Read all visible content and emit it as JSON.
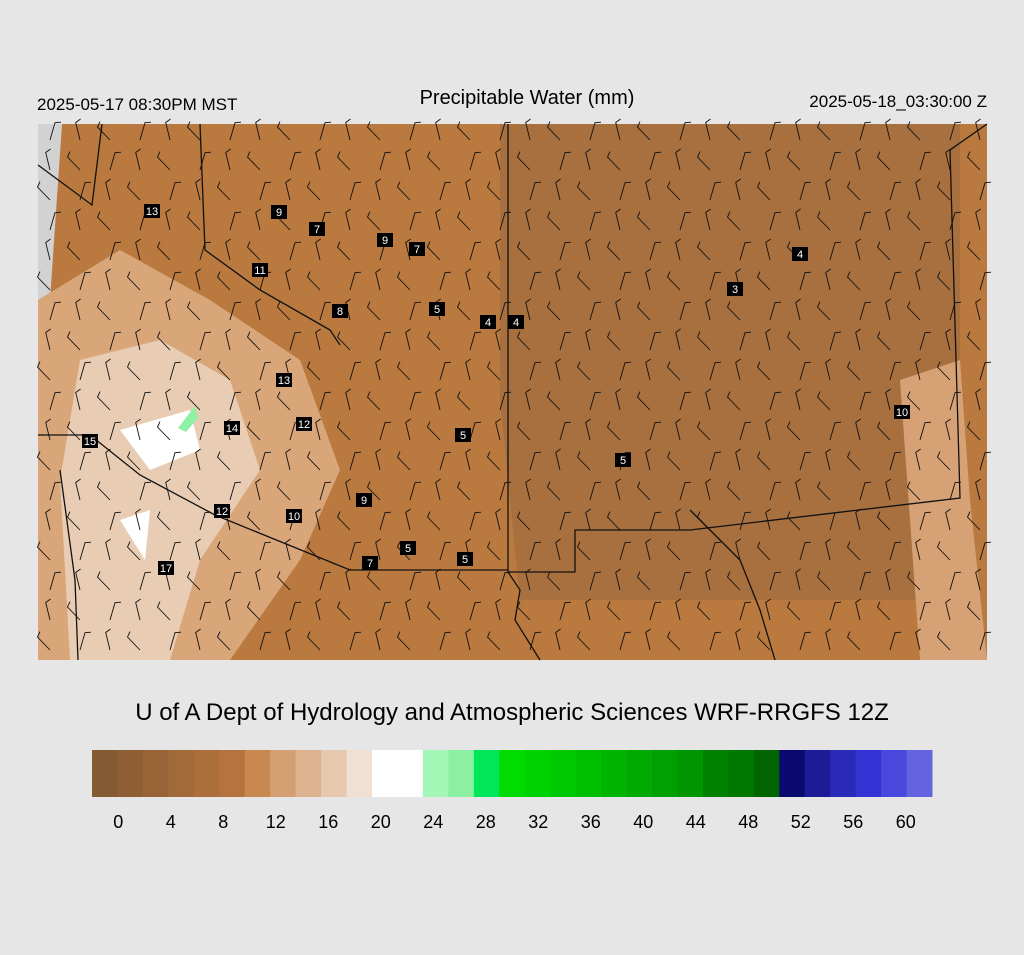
{
  "header": {
    "left": "2025-05-17 08:30PM MST",
    "title": "Precipitable Water (mm)",
    "right": "2025-05-18_03:30:00 Z"
  },
  "map_labels": [
    13,
    9,
    7,
    9,
    7,
    11,
    8,
    5,
    4,
    4,
    3,
    4,
    13,
    14,
    12,
    15,
    5,
    5,
    10,
    9,
    12,
    10,
    5,
    5,
    7,
    17
  ],
  "credit": "U of A Dept of Hydrology and Atmospheric Sciences WRF-RRGFS 12Z",
  "colorbar": {
    "lim": [
      -2,
      62
    ],
    "ticks": [
      0,
      4,
      8,
      12,
      16,
      20,
      24,
      28,
      32,
      36,
      40,
      44,
      48,
      52,
      56,
      60
    ],
    "colors": [
      "#845a33",
      "#8e5f35",
      "#986437",
      "#a26939",
      "#ac6e3b",
      "#b6733d",
      "#c8884f",
      "#d4a073",
      "#dcb38e",
      "#e6c8ae",
      "#f0e0d2",
      "#ffffff",
      "#ffffff",
      "#a2f7b6",
      "#8cf0a2",
      "#00e65a",
      "#00dc00",
      "#00d200",
      "#00c800",
      "#00be00",
      "#00b400",
      "#00aa00",
      "#00a000",
      "#009600",
      "#008200",
      "#007800",
      "#006400",
      "#0a0a6e",
      "#1c1c96",
      "#2a2ab8",
      "#3434d4",
      "#4848dc",
      "#6464e0"
    ]
  }
}
